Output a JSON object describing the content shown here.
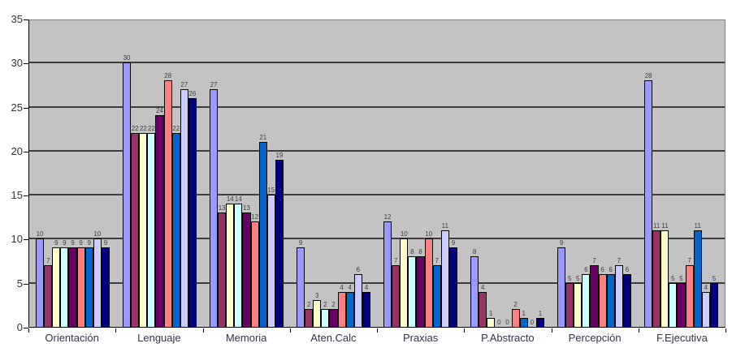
{
  "chart_data": {
    "type": "bar",
    "title": "",
    "categories": [
      "Orientación",
      "Lenguaje",
      "Memoria",
      "Aten.Calc",
      "Praxias",
      "P.Abstracto",
      "Percepción",
      "F.Ejecutiva"
    ],
    "series": [
      {
        "color": "#9999FF",
        "values": [
          10,
          30,
          27,
          9,
          12,
          8,
          9,
          28
        ]
      },
      {
        "color": "#993366",
        "values": [
          7,
          22,
          13,
          2,
          7,
          4,
          5,
          11
        ]
      },
      {
        "color": "#FFFFCC",
        "values": [
          9,
          22,
          14,
          3,
          10,
          1,
          5,
          11
        ]
      },
      {
        "color": "#CCFFFF",
        "values": [
          9,
          22,
          14,
          2,
          8,
          0,
          6,
          5
        ]
      },
      {
        "color": "#660066",
        "values": [
          9,
          24,
          13,
          2,
          8,
          0,
          7,
          5
        ]
      },
      {
        "color": "#FF8080",
        "values": [
          9,
          28,
          12,
          4,
          10,
          2,
          6,
          7
        ]
      },
      {
        "color": "#0066CC",
        "values": [
          9,
          22,
          21,
          4,
          7,
          1,
          6,
          11
        ]
      },
      {
        "color": "#CCCCFF",
        "values": [
          10,
          27,
          15,
          6,
          11,
          0,
          7,
          4
        ]
      },
      {
        "color": "#000080",
        "values": [
          9,
          26,
          19,
          4,
          9,
          1,
          6,
          5
        ]
      }
    ],
    "ylim": [
      0,
      35
    ],
    "yticks": [
      0,
      5,
      10,
      15,
      20,
      25,
      30,
      35
    ],
    "grid": true,
    "legend": "none",
    "plot_bg": "#C3C3C3",
    "bar_border_color": "#000000",
    "value_label_color": "#404040",
    "data_labels_shown": true
  }
}
